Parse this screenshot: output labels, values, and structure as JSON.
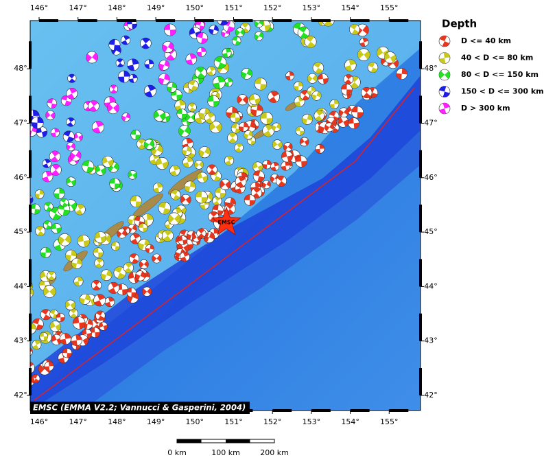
{
  "map": {
    "legend": {
      "title": "Depth",
      "items": [
        {
          "label": "D <= 40 km",
          "color": "#e8361e"
        },
        {
          "label": "40 < D <= 80 km",
          "color": "#c9c91a"
        },
        {
          "label": "80 < D <= 150 km",
          "color": "#22e022"
        },
        {
          "label": "150 < D <= 300 km",
          "color": "#1e1ee8"
        },
        {
          "label": "D > 300 km",
          "color": "#ff1eff"
        }
      ]
    },
    "lon_ticks": [
      {
        "value": 146,
        "label": "146°"
      },
      {
        "value": 147,
        "label": "147°"
      },
      {
        "value": 148,
        "label": "148°"
      },
      {
        "value": 149,
        "label": "149°"
      },
      {
        "value": 150,
        "label": "150°"
      },
      {
        "value": 151,
        "label": "151°"
      },
      {
        "value": 152,
        "label": "152°"
      },
      {
        "value": 153,
        "label": "153°"
      },
      {
        "value": 154,
        "label": "154°"
      },
      {
        "value": 155,
        "label": "155°"
      }
    ],
    "lat_ticks": [
      {
        "value": 42,
        "label": "42°"
      },
      {
        "value": 43,
        "label": "43°"
      },
      {
        "value": 44,
        "label": "44°"
      },
      {
        "value": 45,
        "label": "45°"
      },
      {
        "value": 46,
        "label": "46°"
      },
      {
        "value": 47,
        "label": "47°"
      },
      {
        "value": 48,
        "label": "48°"
      }
    ],
    "attribution": "EMSC (EMMA V2.2; Vannucci & Gasperini, 2004)",
    "epicenter_label": "EMSC",
    "scale_bar": [
      "0 km",
      "100 km",
      "200 km"
    ]
  }
}
